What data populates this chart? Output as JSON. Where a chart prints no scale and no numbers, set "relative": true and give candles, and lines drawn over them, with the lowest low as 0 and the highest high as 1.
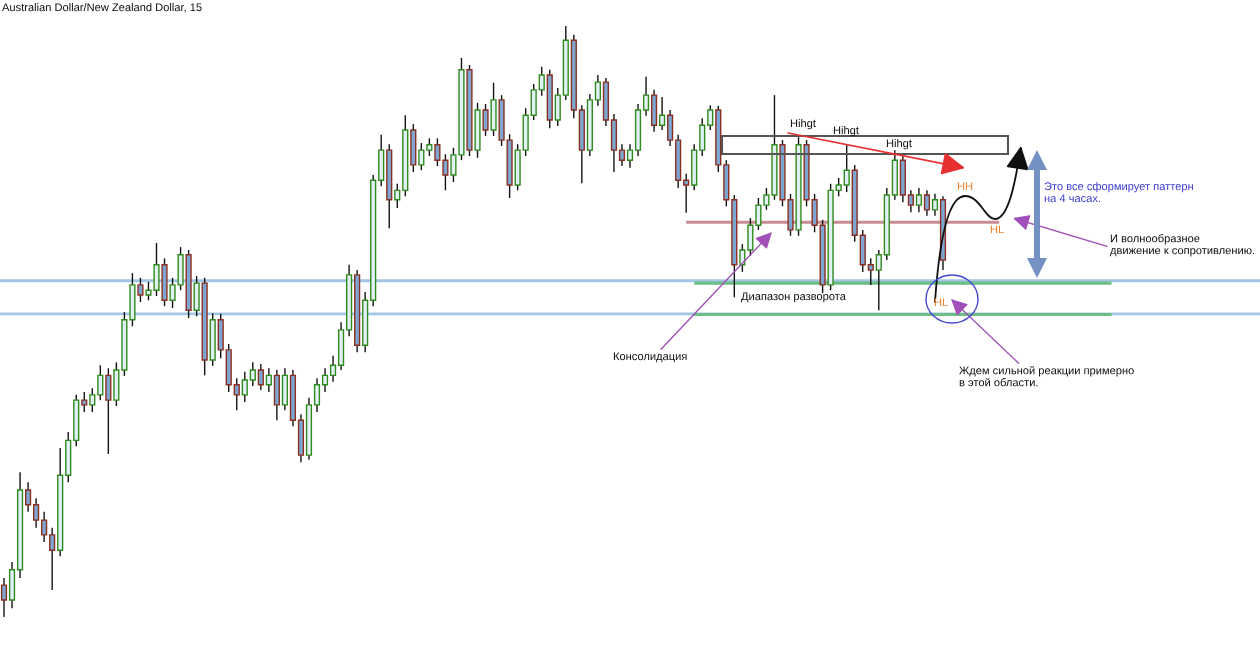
{
  "chart_data": {
    "type": "candlestick",
    "title": "Australian Dollar/New Zealand Dollar, 15",
    "relative": true,
    "tick_labels": false,
    "categories": [
      null,
      null,
      null,
      null,
      null,
      null,
      null,
      null,
      null,
      null,
      null,
      null,
      null,
      null,
      null,
      null,
      null,
      null,
      null,
      null,
      null,
      null,
      null,
      null,
      null,
      null,
      null,
      null,
      null,
      null,
      null,
      null,
      null,
      null,
      null,
      null,
      null,
      null,
      null,
      null,
      null,
      null,
      null,
      null,
      null,
      null,
      null,
      null,
      null,
      null,
      null,
      null,
      null,
      null,
      null,
      null,
      null,
      null,
      null,
      null,
      null,
      null,
      null,
      null,
      null,
      null,
      null,
      null,
      null,
      null,
      null,
      null,
      null,
      null,
      null,
      null,
      null,
      null,
      null,
      null,
      null,
      null,
      null,
      null,
      null,
      null,
      null,
      null,
      null,
      null,
      null,
      null,
      null,
      null,
      null,
      null,
      null,
      null,
      null,
      null,
      null,
      null,
      null,
      null,
      null,
      null,
      null,
      null,
      null,
      null,
      null,
      null,
      null,
      null,
      null,
      null,
      null,
      null,
      null,
      null,
      null,
      null,
      null,
      null,
      null,
      null,
      null,
      null,
      null,
      null,
      null,
      null,
      null,
      null,
      null,
      null,
      null,
      null,
      null,
      null,
      null,
      null,
      null,
      null,
      null,
      null,
      null,
      null,
      null,
      null,
      null,
      null,
      null,
      null,
      null,
      null,
      null
    ],
    "ohlc": [
      [
        0.054,
        0.066,
        0,
        0.029
      ],
      [
        0.029,
        0.093,
        0.015,
        0.08
      ],
      [
        0.08,
        0.245,
        0.066,
        0.215
      ],
      [
        0.215,
        0.228,
        0.178,
        0.19
      ],
      [
        0.19,
        0.201,
        0.151,
        0.164
      ],
      [
        0.164,
        0.178,
        0.127,
        0.139
      ],
      [
        0.139,
        0.151,
        0.046,
        0.113
      ],
      [
        0.113,
        0.286,
        0.103,
        0.24
      ],
      [
        0.24,
        0.313,
        0.228,
        0.299
      ],
      [
        0.299,
        0.376,
        0.289,
        0.367
      ],
      [
        0.367,
        0.381,
        0.347,
        0.359
      ],
      [
        0.359,
        0.387,
        0.347,
        0.376
      ],
      [
        0.376,
        0.426,
        0.367,
        0.409
      ],
      [
        0.409,
        0.421,
        0.276,
        0.367
      ],
      [
        0.367,
        0.431,
        0.357,
        0.418
      ],
      [
        0.418,
        0.516,
        0.408,
        0.503
      ],
      [
        0.503,
        0.582,
        0.492,
        0.562
      ],
      [
        0.562,
        0.574,
        0.533,
        0.545
      ],
      [
        0.545,
        0.567,
        0.536,
        0.553
      ],
      [
        0.553,
        0.633,
        0.543,
        0.596
      ],
      [
        0.596,
        0.607,
        0.526,
        0.536
      ],
      [
        0.536,
        0.574,
        0.523,
        0.562
      ],
      [
        0.562,
        0.626,
        0.553,
        0.613
      ],
      [
        0.613,
        0.621,
        0.506,
        0.519
      ],
      [
        0.519,
        0.577,
        0.509,
        0.565
      ],
      [
        0.565,
        0.574,
        0.409,
        0.435
      ],
      [
        0.435,
        0.514,
        0.425,
        0.503
      ],
      [
        0.503,
        0.513,
        0.438,
        0.452
      ],
      [
        0.452,
        0.462,
        0.381,
        0.393
      ],
      [
        0.393,
        0.404,
        0.35,
        0.376
      ],
      [
        0.376,
        0.415,
        0.364,
        0.401
      ],
      [
        0.401,
        0.431,
        0.391,
        0.418
      ],
      [
        0.418,
        0.428,
        0.384,
        0.393
      ],
      [
        0.393,
        0.421,
        0.381,
        0.409
      ],
      [
        0.409,
        0.418,
        0.333,
        0.359
      ],
      [
        0.359,
        0.421,
        0.35,
        0.409
      ],
      [
        0.409,
        0.418,
        0.323,
        0.333
      ],
      [
        0.333,
        0.343,
        0.262,
        0.274
      ],
      [
        0.274,
        0.371,
        0.266,
        0.359
      ],
      [
        0.359,
        0.404,
        0.347,
        0.393
      ],
      [
        0.393,
        0.421,
        0.381,
        0.409
      ],
      [
        0.409,
        0.442,
        0.398,
        0.426
      ],
      [
        0.426,
        0.499,
        0.418,
        0.486
      ],
      [
        0.486,
        0.596,
        0.475,
        0.579
      ],
      [
        0.579,
        0.587,
        0.448,
        0.46
      ],
      [
        0.46,
        0.55,
        0.448,
        0.536
      ],
      [
        0.536,
        0.748,
        0.526,
        0.739
      ],
      [
        0.739,
        0.816,
        0.729,
        0.79
      ],
      [
        0.79,
        0.8,
        0.658,
        0.706
      ],
      [
        0.706,
        0.733,
        0.692,
        0.722
      ],
      [
        0.722,
        0.849,
        0.712,
        0.824
      ],
      [
        0.824,
        0.834,
        0.753,
        0.765
      ],
      [
        0.765,
        0.802,
        0.756,
        0.79
      ],
      [
        0.79,
        0.81,
        0.78,
        0.799
      ],
      [
        0.799,
        0.81,
        0.763,
        0.773
      ],
      [
        0.773,
        0.783,
        0.722,
        0.748
      ],
      [
        0.748,
        0.794,
        0.736,
        0.782
      ],
      [
        0.782,
        0.946,
        0.773,
        0.926
      ],
      [
        0.926,
        0.934,
        0.78,
        0.79
      ],
      [
        0.79,
        0.87,
        0.777,
        0.858
      ],
      [
        0.858,
        0.868,
        0.814,
        0.824
      ],
      [
        0.824,
        0.904,
        0.814,
        0.875
      ],
      [
        0.875,
        0.883,
        0.797,
        0.807
      ],
      [
        0.807,
        0.817,
        0.709,
        0.731
      ],
      [
        0.731,
        0.8,
        0.722,
        0.79
      ],
      [
        0.79,
        0.861,
        0.78,
        0.849
      ],
      [
        0.849,
        0.902,
        0.841,
        0.892
      ],
      [
        0.892,
        0.931,
        0.882,
        0.917
      ],
      [
        0.917,
        0.926,
        0.827,
        0.841
      ],
      [
        0.841,
        0.895,
        0.831,
        0.883
      ],
      [
        0.883,
        1,
        0.875,
        0.976
      ],
      [
        0.976,
        0.985,
        0.844,
        0.858
      ],
      [
        0.858,
        0.866,
        0.734,
        0.79
      ],
      [
        0.79,
        0.885,
        0.78,
        0.875
      ],
      [
        0.875,
        0.917,
        0.865,
        0.905
      ],
      [
        0.905,
        0.912,
        0.831,
        0.841
      ],
      [
        0.841,
        0.851,
        0.753,
        0.79
      ],
      [
        0.79,
        0.8,
        0.763,
        0.773
      ],
      [
        0.773,
        0.8,
        0.76,
        0.79
      ],
      [
        0.79,
        0.868,
        0.78,
        0.858
      ],
      [
        0.858,
        0.914,
        0.848,
        0.883
      ],
      [
        0.883,
        0.892,
        0.821,
        0.832
      ],
      [
        0.832,
        0.88,
        0.824,
        0.849
      ],
      [
        0.849,
        0.858,
        0.797,
        0.807
      ],
      [
        0.807,
        0.816,
        0.726,
        0.739
      ],
      [
        0.739,
        0.75,
        0.684,
        0.731
      ],
      [
        0.731,
        0.8,
        0.722,
        0.79
      ],
      [
        0.79,
        0.844,
        0.78,
        0.832
      ],
      [
        0.832,
        0.866,
        0.824,
        0.858
      ],
      [
        0.858,
        0.865,
        0.753,
        0.765
      ],
      [
        0.765,
        0.773,
        0.695,
        0.706
      ],
      [
        0.706,
        0.714,
        0.541,
        0.596
      ],
      [
        0.596,
        0.631,
        0.584,
        0.621
      ],
      [
        0.621,
        0.675,
        0.611,
        0.663
      ],
      [
        0.663,
        0.709,
        0.655,
        0.697
      ],
      [
        0.697,
        0.726,
        0.689,
        0.714
      ],
      [
        0.714,
        0.883,
        0.706,
        0.799
      ],
      [
        0.799,
        0.807,
        0.695,
        0.706
      ],
      [
        0.706,
        0.716,
        0.645,
        0.655
      ],
      [
        0.655,
        0.812,
        0.645,
        0.799
      ],
      [
        0.799,
        0.807,
        0.695,
        0.706
      ],
      [
        0.706,
        0.716,
        0.651,
        0.663
      ],
      [
        0.663,
        0.672,
        0.548,
        0.562
      ],
      [
        0.562,
        0.733,
        0.553,
        0.722
      ],
      [
        0.722,
        0.743,
        0.712,
        0.731
      ],
      [
        0.731,
        0.799,
        0.719,
        0.756
      ],
      [
        0.756,
        0.765,
        0.635,
        0.646
      ],
      [
        0.646,
        0.655,
        0.584,
        0.596
      ],
      [
        0.596,
        0.607,
        0.562,
        0.587
      ],
      [
        0.587,
        0.621,
        0.519,
        0.613
      ],
      [
        0.613,
        0.726,
        0.604,
        0.714
      ],
      [
        0.714,
        0.79,
        0.706,
        0.773
      ],
      [
        0.773,
        0.783,
        0.702,
        0.714
      ],
      [
        0.714,
        0.722,
        0.685,
        0.697
      ],
      [
        0.697,
        0.726,
        0.685,
        0.714
      ],
      [
        0.714,
        0.722,
        0.679,
        0.689
      ],
      [
        0.689,
        0.716,
        0.679,
        0.706
      ],
      [
        0.706,
        0.712,
        0.587,
        0.604
      ],
      null,
      null,
      null,
      null,
      null,
      null,
      null,
      null,
      null,
      null,
      null,
      null,
      null,
      null,
      null,
      null,
      null,
      null,
      null,
      null,
      null,
      null,
      null,
      null,
      null,
      null,
      null,
      null,
      null,
      null,
      null,
      null,
      null,
      null,
      null,
      null,
      null,
      null,
      null
    ],
    "series": [
      {
        "type": "line",
        "color": "#c98c92",
        "values": [
          null,
          null,
          null,
          null,
          null,
          null,
          null,
          null,
          null,
          null,
          null,
          null,
          null,
          null,
          null,
          null,
          null,
          null,
          null,
          null,
          null,
          null,
          null,
          null,
          null,
          null,
          null,
          null,
          null,
          null,
          null,
          null,
          null,
          null,
          null,
          null,
          null,
          null,
          null,
          null,
          null,
          null,
          null,
          null,
          null,
          null,
          null,
          null,
          null,
          null,
          null,
          null,
          null,
          null,
          null,
          null,
          null,
          null,
          null,
          null,
          null,
          null,
          null,
          null,
          null,
          null,
          null,
          null,
          null,
          null,
          null,
          null,
          null,
          null,
          null,
          null,
          null,
          null,
          null,
          null,
          null,
          null,
          null,
          null,
          null,
          0.668,
          0.668,
          0.668,
          0.668,
          0.668,
          0.668,
          0.668,
          0.668,
          0.668,
          0.668,
          0.668,
          0.668,
          0.668,
          0.668,
          0.668,
          0.668,
          0.668,
          0.668,
          0.668,
          0.668,
          0.668,
          0.668,
          0.668,
          0.668,
          0.668,
          0.668,
          0.668,
          0.668,
          0.668,
          0.668,
          0.668,
          0.668,
          0.668,
          0.668,
          0.668,
          0.668,
          0.668,
          0.668,
          0.668,
          0.668,
          null,
          null,
          null,
          null,
          null,
          null,
          null,
          null,
          null,
          null,
          null,
          null,
          null,
          null,
          null,
          null,
          null,
          null,
          null,
          null,
          null,
          null,
          null,
          null,
          null,
          null,
          null,
          null,
          null,
          null,
          null,
          null
        ]
      },
      {
        "type": "line",
        "color": "#6dbd86",
        "values": [
          null,
          null,
          null,
          null,
          null,
          null,
          null,
          null,
          null,
          null,
          null,
          null,
          null,
          null,
          null,
          null,
          null,
          null,
          null,
          null,
          null,
          null,
          null,
          null,
          null,
          null,
          null,
          null,
          null,
          null,
          null,
          null,
          null,
          null,
          null,
          null,
          null,
          null,
          null,
          null,
          null,
          null,
          null,
          null,
          null,
          null,
          null,
          null,
          null,
          null,
          null,
          null,
          null,
          null,
          null,
          null,
          null,
          null,
          null,
          null,
          null,
          null,
          null,
          null,
          null,
          null,
          null,
          null,
          null,
          null,
          null,
          null,
          null,
          null,
          null,
          null,
          null,
          null,
          null,
          null,
          null,
          null,
          null,
          null,
          null,
          null,
          0.565,
          0.565,
          0.565,
          0.565,
          0.565,
          0.565,
          0.565,
          0.565,
          0.565,
          0.565,
          0.565,
          0.565,
          0.565,
          0.565,
          0.565,
          0.565,
          0.565,
          0.565,
          0.565,
          0.565,
          0.565,
          0.565,
          0.565,
          0.565,
          0.565,
          0.565,
          0.565,
          0.565,
          0.565,
          0.565,
          0.565,
          0.565,
          0.565,
          0.565,
          0.565,
          0.565,
          0.565,
          0.565,
          0.565,
          0.565,
          0.565,
          0.565,
          0.565,
          0.565,
          0.565,
          0.565,
          0.565,
          0.565,
          0.565,
          0.565,
          0.565,
          0.565,
          0.565,
          null,
          null,
          null,
          null,
          null,
          null,
          null,
          null,
          null,
          null,
          null,
          null,
          null,
          null,
          null,
          null,
          null,
          null
        ]
      },
      {
        "type": "line",
        "color": "#6dbd86",
        "values": [
          null,
          null,
          null,
          null,
          null,
          null,
          null,
          null,
          null,
          null,
          null,
          null,
          null,
          null,
          null,
          null,
          null,
          null,
          null,
          null,
          null,
          null,
          null,
          null,
          null,
          null,
          null,
          null,
          null,
          null,
          null,
          null,
          null,
          null,
          null,
          null,
          null,
          null,
          null,
          null,
          null,
          null,
          null,
          null,
          null,
          null,
          null,
          null,
          null,
          null,
          null,
          null,
          null,
          null,
          null,
          null,
          null,
          null,
          null,
          null,
          null,
          null,
          null,
          null,
          null,
          null,
          null,
          null,
          null,
          null,
          null,
          null,
          null,
          null,
          null,
          null,
          null,
          null,
          null,
          null,
          null,
          null,
          null,
          null,
          null,
          null,
          0.512,
          0.512,
          0.512,
          0.512,
          0.512,
          0.512,
          0.512,
          0.512,
          0.512,
          0.512,
          0.512,
          0.512,
          0.512,
          0.512,
          0.512,
          0.512,
          0.512,
          0.512,
          0.512,
          0.512,
          0.512,
          0.512,
          0.512,
          0.512,
          0.512,
          0.512,
          0.512,
          0.512,
          0.512,
          0.512,
          0.512,
          0.512,
          0.512,
          0.512,
          0.512,
          0.512,
          0.512,
          0.512,
          0.512,
          0.512,
          0.512,
          0.512,
          0.512,
          0.512,
          0.512,
          0.512,
          0.512,
          0.512,
          0.512,
          0.512,
          0.512,
          0.512,
          0.512,
          null,
          null,
          null,
          null,
          null,
          null,
          null,
          null,
          null,
          null,
          null,
          null,
          null,
          null,
          null,
          null,
          null,
          null
        ]
      }
    ],
    "ref_lines": [
      {
        "axis": "y",
        "value": 0.569,
        "color": "#a4c6e6"
      },
      {
        "axis": "y",
        "value": 0.513,
        "color": "#a4c6e6"
      }
    ],
    "annotations": [
      "Hihgt",
      "Hihgt",
      "Hihgt",
      "HH",
      "HL",
      "HL",
      "Это все сформирует паттерн\nна 4 часах.",
      "И волнообразное\nдвижение к сопротивлению.",
      "Диапазон разворота",
      "Консолидация",
      "Ждем сильной реакции примерно\nв этой области."
    ]
  }
}
